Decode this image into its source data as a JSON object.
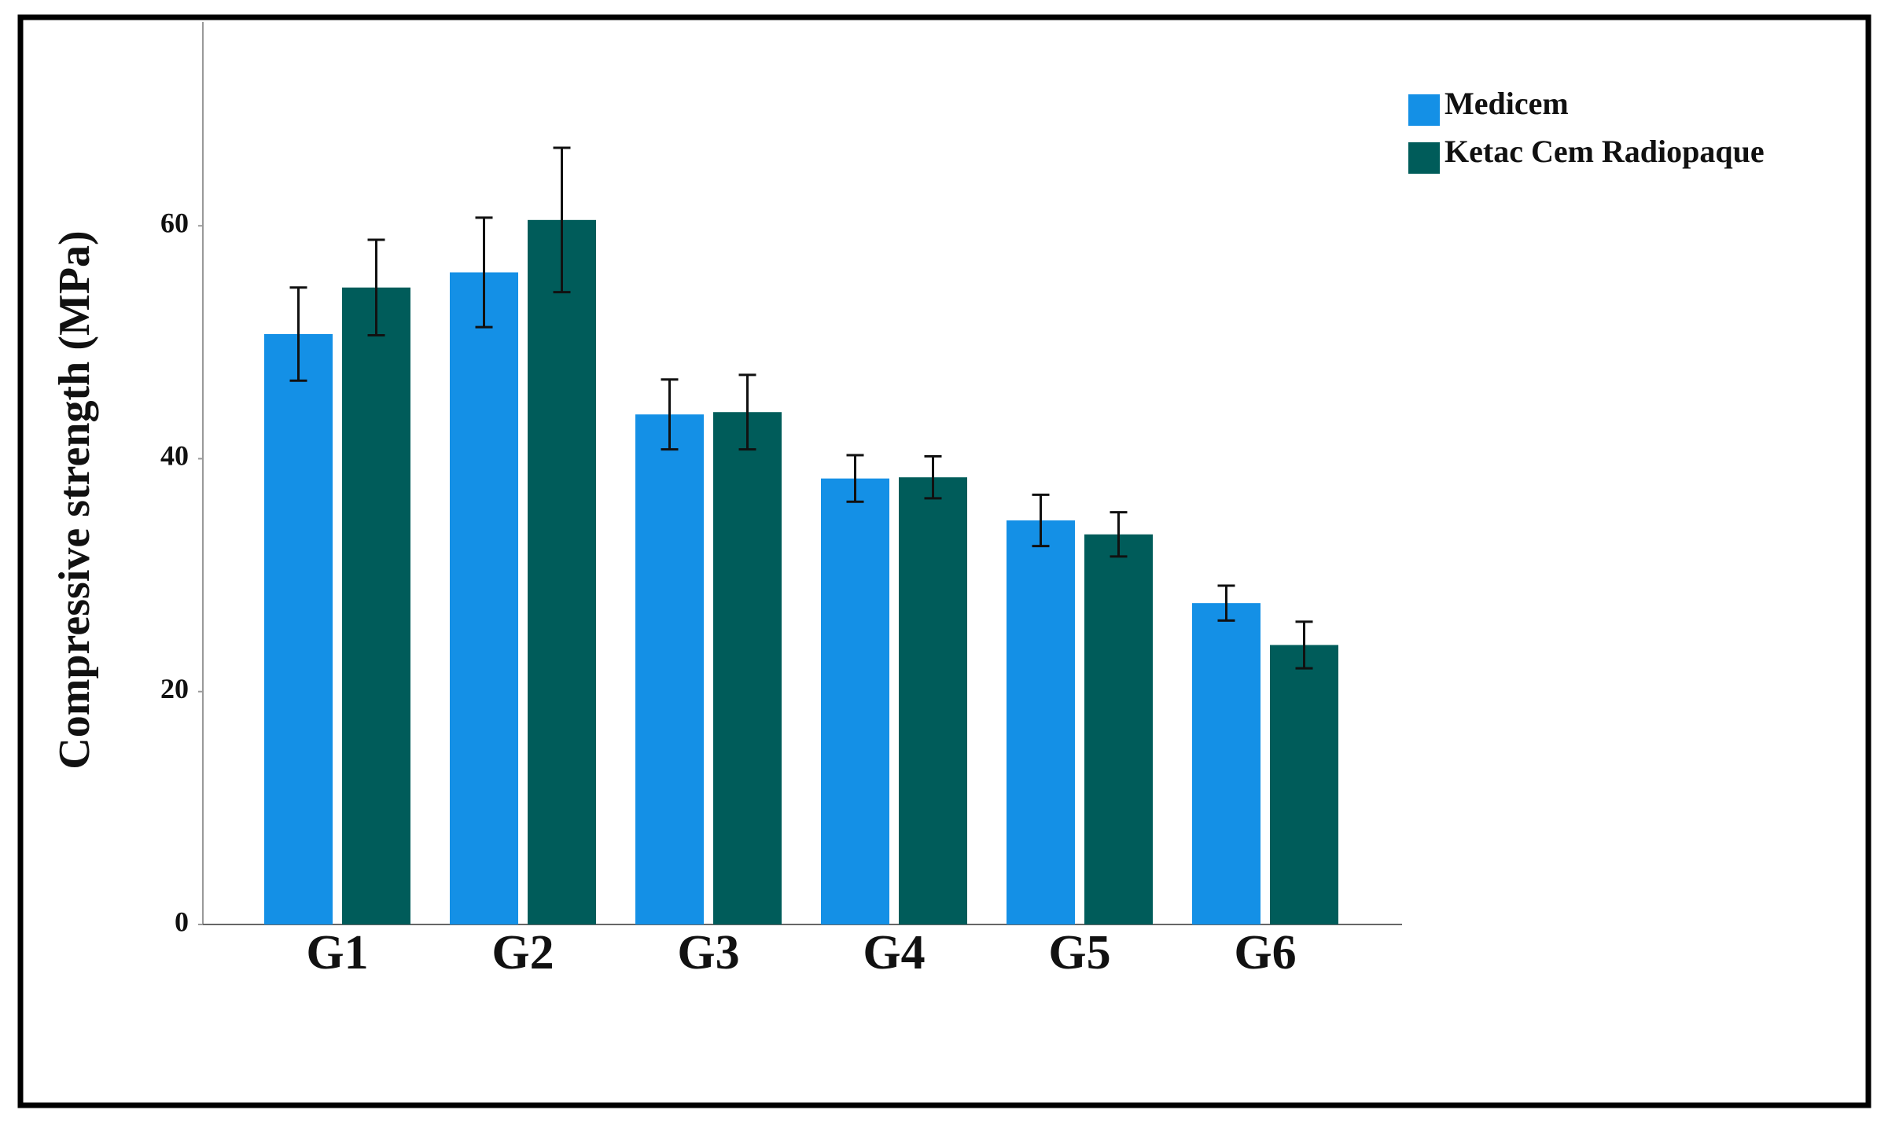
{
  "chart_data": {
    "type": "bar",
    "y_label": "Compressive strength (MPa)",
    "categories": [
      "G1",
      "G2",
      "G3",
      "G4",
      "G5",
      "G6"
    ],
    "series": [
      {
        "name": "Medicem",
        "color": "#1490e6",
        "values": [
          50.7,
          56.0,
          43.8,
          38.3,
          34.7,
          27.6
        ],
        "errors": [
          4.0,
          4.7,
          3.0,
          2.0,
          2.2,
          1.5
        ]
      },
      {
        "name": "Ketac Cem Radiopaque",
        "color": "#005c5a",
        "values": [
          54.7,
          60.5,
          44.0,
          38.4,
          33.5,
          24.0
        ],
        "errors": [
          4.1,
          6.2,
          3.2,
          1.8,
          1.9,
          2.0
        ]
      }
    ],
    "ylim": [
      0,
      77.5
    ],
    "yticks": [
      0,
      20,
      40,
      60
    ],
    "legend": "top-right"
  }
}
